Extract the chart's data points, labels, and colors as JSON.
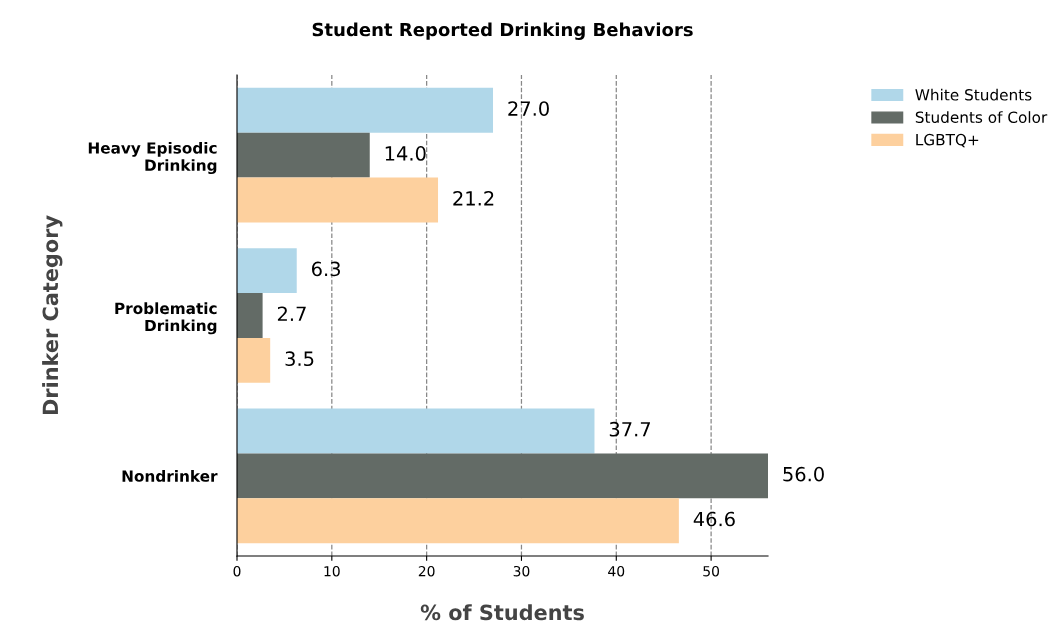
{
  "chart_data": {
    "type": "bar",
    "orientation": "horizontal",
    "title": "Student Reported Drinking Behaviors",
    "xlabel": "% of Students",
    "ylabel": "Drinker Category",
    "categories": [
      "Heavy Episodic\nDrinking",
      "Problematic\nDrinking",
      "Nondrinker"
    ],
    "series": [
      {
        "name": "White Students",
        "color": "#b0d7e9",
        "values": [
          27.0,
          6.3,
          37.7
        ],
        "value_labels": [
          "27.0",
          "6.3",
          "37.7"
        ]
      },
      {
        "name": "Students of Color",
        "color": "#636b66",
        "values": [
          14.0,
          2.7,
          56.0
        ],
        "value_labels": [
          "14.0",
          "2.7",
          "56.0"
        ]
      },
      {
        "name": "LGBTQ+",
        "color": "#fdd09e",
        "values": [
          21.2,
          3.5,
          46.6
        ],
        "value_labels": [
          "21.2",
          "3.5",
          "46.6"
        ]
      }
    ],
    "xlim": [
      0,
      56
    ],
    "xticks": [
      0,
      10,
      20,
      30,
      40,
      50
    ],
    "grid": "x",
    "line_style": "dashed",
    "legend": "top right"
  }
}
